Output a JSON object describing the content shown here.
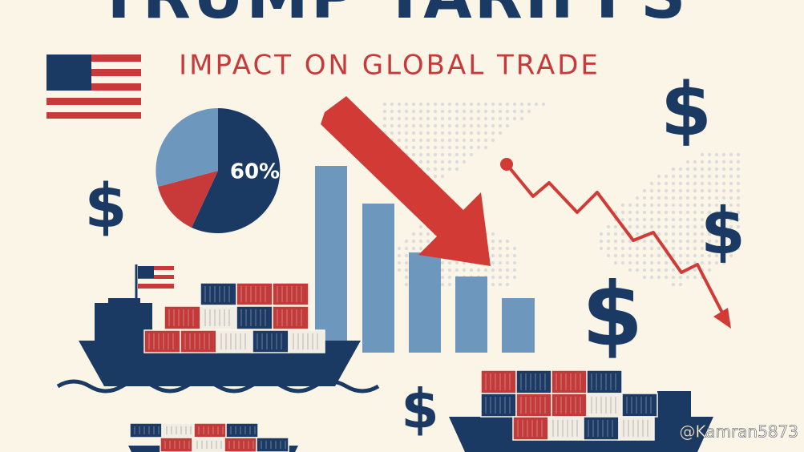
{
  "header": {
    "title": "TRUMP TARIFFS",
    "subtitle": "IMPACT ON GLOBAL TRADE"
  },
  "pie_label": "60%",
  "dollar_signs": [
    "$",
    "$",
    "$",
    "$",
    "$"
  ],
  "watermark": "@Kamran5873"
}
